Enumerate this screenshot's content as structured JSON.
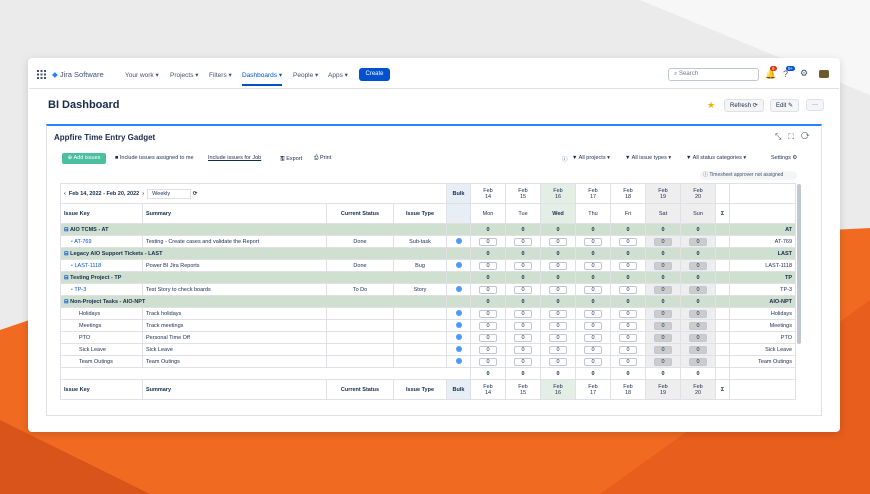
{
  "nav": {
    "logo": "Jira Software",
    "items": [
      "Your work",
      "Projects",
      "Filters",
      "Dashboards",
      "People",
      "Apps"
    ],
    "create": "Create",
    "search": "Search",
    "notifications": "9",
    "help": "9+"
  },
  "header": {
    "title": "BI Dashboard",
    "refresh": "Refresh",
    "edit": "Edit"
  },
  "gadget": {
    "title": "Appfire Time Entry Gadget",
    "add_issues": "Add issues",
    "include_assigned": "Include issues assigned to me",
    "include_for_job": "Include issues for Job",
    "export": "Export",
    "print": "Print",
    "filters": [
      "All projects",
      "All issue types",
      "All status categories"
    ],
    "settings": "Settings",
    "notice": "Timesheet approver not assigned",
    "date_range": "Feb 14, 2022 - Feb 20, 2022",
    "period": "Weekly"
  },
  "table": {
    "columns": [
      "Issue Key",
      "Summary",
      "Current Status",
      "Issue Type"
    ],
    "bulk": "Bulk",
    "sum": "Σ",
    "days": [
      {
        "month": "Feb",
        "date": "14",
        "weekday": "Mon"
      },
      {
        "month": "Feb",
        "date": "15",
        "weekday": "Tue"
      },
      {
        "month": "Feb",
        "date": "16",
        "weekday": "Wed"
      },
      {
        "month": "Feb",
        "date": "17",
        "weekday": "Thu"
      },
      {
        "month": "Feb",
        "date": "18",
        "weekday": "Fri"
      },
      {
        "month": "Feb",
        "date": "19",
        "weekday": "Sat"
      },
      {
        "month": "Feb",
        "date": "20",
        "weekday": "Sun"
      }
    ],
    "groups": [
      {
        "title": "AIO TCMS - AT",
        "totals": [
          0,
          0,
          0,
          0,
          0,
          0,
          0
        ],
        "key": "AT",
        "rows": [
          {
            "key": "AT-769",
            "summary": "Testing - Create cases and validate the Report",
            "status": "Done",
            "type": "Sub-task",
            "hours": [
              0,
              0,
              0,
              0,
              0,
              0,
              0
            ],
            "end": "AT-769"
          }
        ]
      },
      {
        "title": "Legacy AIO Support Tickets - LAST",
        "totals": [
          0,
          0,
          0,
          0,
          0,
          0,
          0
        ],
        "key": "LAST",
        "rows": [
          {
            "key": "LAST-1118",
            "summary": "Power BI Jira Reports",
            "status": "Done",
            "type": "Bug",
            "hours": [
              0,
              0,
              0,
              0,
              0,
              0,
              0
            ],
            "end": "LAST-1118"
          }
        ]
      },
      {
        "title": "Testing Project - TP",
        "totals": [
          0,
          0,
          0,
          0,
          0,
          0,
          0
        ],
        "key": "TP",
        "rows": [
          {
            "key": "TP-3",
            "summary": "Test Story to check boards",
            "status": "To Do",
            "type": "Story",
            "hours": [
              0,
              0,
              0,
              0,
              0,
              0,
              0
            ],
            "end": "TP-3"
          }
        ]
      },
      {
        "title": "Non-Project Tasks - AIO-NPT",
        "totals": [
          0,
          0,
          0,
          0,
          0,
          0,
          0
        ],
        "key": "AIO-NPT",
        "rows": [
          {
            "key": "Holidays",
            "summary": "Track holidays",
            "hours": [
              0,
              0,
              0,
              0,
              0,
              0,
              0
            ],
            "end": "Holidays"
          },
          {
            "key": "Meetings",
            "summary": "Track meetings",
            "hours": [
              0,
              0,
              0,
              0,
              0,
              0,
              0
            ],
            "end": "Meetings"
          },
          {
            "key": "PTO",
            "summary": "Personal Time Off",
            "hours": [
              0,
              0,
              0,
              0,
              0,
              0,
              0
            ],
            "end": "PTO"
          },
          {
            "key": "Sick Leave",
            "summary": "Sick Leave",
            "hours": [
              0,
              0,
              0,
              0,
              0,
              0,
              0
            ],
            "end": "Sick Leave"
          },
          {
            "key": "Team Outings",
            "summary": "Team Outings",
            "hours": [
              0,
              0,
              0,
              0,
              0,
              0,
              0
            ],
            "end": "Team Outings"
          }
        ]
      }
    ],
    "totals": [
      0,
      0,
      0,
      0,
      0,
      0,
      0
    ]
  }
}
